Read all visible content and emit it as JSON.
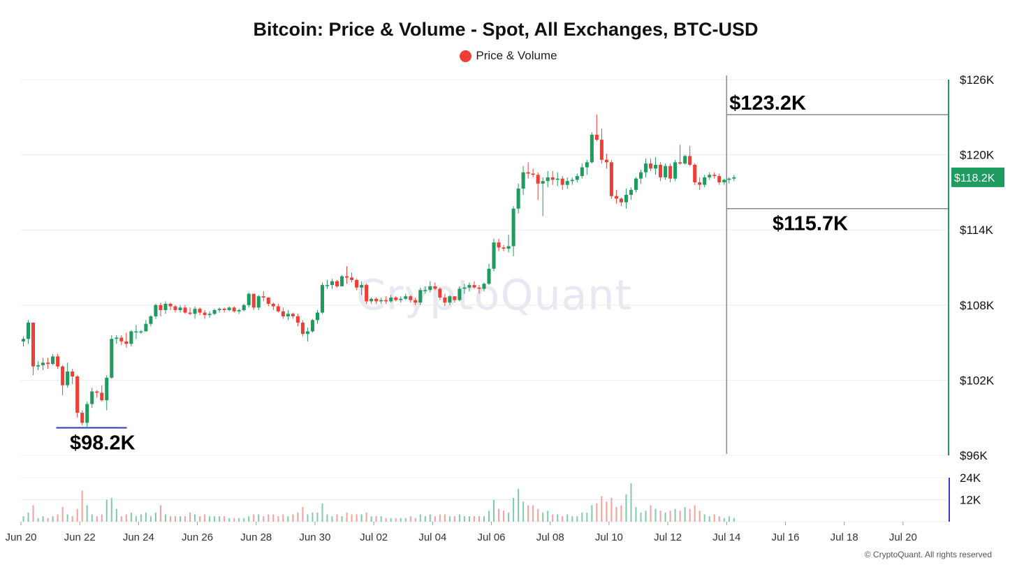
{
  "title": "Bitcoin: Price & Volume - Spot, All Exchanges, BTC-USD",
  "legend": {
    "label": "Price & Volume",
    "color": "#ef3e36"
  },
  "watermark": "CryptoQuant",
  "copyright": "© CryptoQuant. All rights reserved",
  "colors": {
    "up": "#1e9b5f",
    "down": "#ef3e36",
    "vol_up": "#7fcbab",
    "vol_down": "#f4a19b",
    "grid": "#ececec",
    "range_line": "#888888",
    "low_line": "#2b3bb0",
    "current_badge": "#1e9b5f",
    "volume_axis": "#3a36c7"
  },
  "chart_data": {
    "type": "candlestick",
    "price_axis": {
      "ticks": [
        "$96K",
        "$102K",
        "$108K",
        "$114K",
        "$120K",
        "$126K"
      ],
      "tick_values": [
        96,
        102,
        108,
        114,
        120,
        126
      ],
      "ylim": [
        96,
        126
      ],
      "unit": "thousand USD"
    },
    "volume_axis": {
      "ticks": [
        "12K",
        "24K"
      ],
      "tick_values": [
        12,
        24
      ],
      "ylim": [
        0,
        24
      ]
    },
    "x_axis": {
      "ticks": [
        "Jun 20",
        "Jun 22",
        "Jun 24",
        "Jun 26",
        "Jun 28",
        "Jun 30",
        "Jul 02",
        "Jul 04",
        "Jul 06",
        "Jul 08",
        "Jul 10",
        "Jul 12",
        "Jul 14",
        "Jul 16",
        "Jul 18",
        "Jul 20"
      ],
      "tick_days": [
        0,
        2,
        4,
        6,
        8,
        10,
        12,
        14,
        16,
        18,
        20,
        22,
        24,
        26,
        28,
        30
      ]
    },
    "current_price_label": "$118.2K",
    "current_price": 118.2,
    "annotations": [
      {
        "label": "$123.2K",
        "value": 123.2
      },
      {
        "label": "$115.7K",
        "value": 115.7
      },
      {
        "label": "$98.2K",
        "value": 98.2
      }
    ],
    "range_box": {
      "start_day": 24.0,
      "high": 123.2,
      "low": 115.7
    },
    "low_marker": {
      "start_day": 1.2,
      "end_day": 3.6,
      "value": 98.2
    },
    "interval": "4h",
    "candles": [
      [
        105.1,
        105.5,
        104.7,
        105.3,
        3
      ],
      [
        105.3,
        106.8,
        104.9,
        106.6,
        5
      ],
      [
        106.6,
        106.6,
        102.4,
        103.1,
        9
      ],
      [
        103.1,
        103.5,
        102.8,
        103.2,
        2
      ],
      [
        103.2,
        103.8,
        102.8,
        103.4,
        3
      ],
      [
        103.4,
        103.8,
        102.9,
        103.3,
        2
      ],
      [
        103.3,
        104.1,
        103.2,
        103.9,
        3
      ],
      [
        103.9,
        104.1,
        102.9,
        103.1,
        4
      ],
      [
        103.1,
        103.2,
        100.8,
        101.6,
        8
      ],
      [
        101.6,
        103.4,
        101.4,
        102.7,
        4
      ],
      [
        102.7,
        102.9,
        101.7,
        102.3,
        3
      ],
      [
        102.3,
        102.4,
        99.0,
        99.4,
        7
      ],
      [
        99.4,
        99.6,
        98.4,
        98.6,
        17
      ],
      [
        98.6,
        100.3,
        98.2,
        100.1,
        9
      ],
      [
        100.1,
        101.4,
        99.8,
        101.1,
        4
      ],
      [
        101.1,
        101.2,
        100.6,
        101.0,
        3
      ],
      [
        101.0,
        101.6,
        100.3,
        100.4,
        4
      ],
      [
        100.4,
        102.4,
        99.6,
        102.2,
        12
      ],
      [
        102.2,
        105.6,
        102.1,
        105.3,
        13
      ],
      [
        105.3,
        105.6,
        104.9,
        105.4,
        7
      ],
      [
        105.4,
        105.6,
        104.8,
        105.1,
        3
      ],
      [
        105.1,
        105.8,
        104.6,
        104.9,
        4
      ],
      [
        104.9,
        106.0,
        104.7,
        105.9,
        5
      ],
      [
        105.9,
        106.4,
        105.3,
        105.9,
        3
      ],
      [
        105.9,
        106.0,
        105.7,
        105.9,
        4
      ],
      [
        105.9,
        106.8,
        105.9,
        106.5,
        5
      ],
      [
        106.5,
        107.2,
        106.3,
        107.1,
        3
      ],
      [
        107.1,
        108.1,
        106.9,
        108.0,
        5
      ],
      [
        108.0,
        108.2,
        107.1,
        107.6,
        9
      ],
      [
        107.6,
        108.3,
        107.3,
        108.1,
        4
      ],
      [
        108.1,
        108.2,
        107.6,
        107.9,
        3
      ],
      [
        107.9,
        108.0,
        107.4,
        107.6,
        3
      ],
      [
        107.6,
        108.0,
        107.4,
        107.8,
        3
      ],
      [
        107.8,
        108.0,
        107.3,
        107.4,
        3
      ],
      [
        107.4,
        107.8,
        107.2,
        107.3,
        5
      ],
      [
        107.3,
        107.9,
        106.9,
        107.7,
        4
      ],
      [
        107.7,
        107.8,
        107.2,
        107.4,
        3
      ],
      [
        107.4,
        107.6,
        106.9,
        107.2,
        4
      ],
      [
        107.2,
        107.5,
        107.0,
        107.3,
        3
      ],
      [
        107.3,
        107.7,
        107.2,
        107.6,
        3
      ],
      [
        107.6,
        107.8,
        107.4,
        107.7,
        3
      ],
      [
        107.7,
        107.8,
        107.4,
        107.6,
        3
      ],
      [
        107.6,
        107.9,
        107.5,
        107.8,
        2
      ],
      [
        107.8,
        107.9,
        107.4,
        107.5,
        2
      ],
      [
        107.5,
        107.7,
        107.3,
        107.6,
        2
      ],
      [
        107.6,
        108.1,
        107.5,
        108.0,
        2
      ],
      [
        108.0,
        109.0,
        107.8,
        108.9,
        3
      ],
      [
        108.9,
        108.9,
        107.6,
        107.8,
        4
      ],
      [
        107.8,
        108.8,
        107.6,
        108.7,
        4
      ],
      [
        108.7,
        109.1,
        108.3,
        108.6,
        3
      ],
      [
        108.6,
        108.6,
        107.9,
        108.1,
        4
      ],
      [
        108.1,
        108.2,
        107.6,
        107.9,
        4
      ],
      [
        107.9,
        108.1,
        107.4,
        107.5,
        3
      ],
      [
        107.5,
        107.8,
        106.9,
        107.1,
        4
      ],
      [
        107.1,
        107.6,
        106.8,
        107.3,
        3
      ],
      [
        107.3,
        107.4,
        106.9,
        107.1,
        4
      ],
      [
        107.1,
        107.3,
        106.3,
        106.6,
        5
      ],
      [
        106.6,
        106.8,
        105.5,
        105.7,
        8
      ],
      [
        105.7,
        106.2,
        105.1,
        105.9,
        4
      ],
      [
        105.9,
        106.9,
        105.8,
        106.8,
        5
      ],
      [
        106.8,
        107.6,
        106.5,
        107.4,
        5
      ],
      [
        107.4,
        109.8,
        107.3,
        109.6,
        10
      ],
      [
        109.6,
        110.0,
        109.3,
        109.6,
        4
      ],
      [
        109.6,
        110.1,
        109.3,
        109.9,
        3
      ],
      [
        109.9,
        110.0,
        109.4,
        109.5,
        4
      ],
      [
        109.5,
        110.4,
        109.5,
        110.3,
        3
      ],
      [
        110.3,
        111.1,
        109.7,
        110.2,
        5
      ],
      [
        110.2,
        110.6,
        109.8,
        110.0,
        4
      ],
      [
        110.0,
        110.1,
        109.2,
        109.4,
        4
      ],
      [
        109.4,
        109.9,
        108.8,
        109.6,
        4
      ],
      [
        109.6,
        109.7,
        108.1,
        108.3,
        5
      ],
      [
        108.3,
        108.6,
        108.1,
        108.5,
        3
      ],
      [
        108.5,
        108.6,
        108.1,
        108.3,
        3
      ],
      [
        108.3,
        108.6,
        108.1,
        108.4,
        3
      ],
      [
        108.4,
        108.7,
        108.1,
        108.3,
        2
      ],
      [
        108.3,
        108.8,
        108.2,
        108.6,
        2
      ],
      [
        108.6,
        108.7,
        108.3,
        108.4,
        2
      ],
      [
        108.4,
        108.7,
        108.2,
        108.5,
        2
      ],
      [
        108.5,
        108.9,
        108.4,
        108.7,
        2
      ],
      [
        108.7,
        108.8,
        108.2,
        108.4,
        3
      ],
      [
        108.4,
        108.6,
        108.0,
        108.2,
        2
      ],
      [
        108.2,
        109.4,
        108.0,
        109.2,
        4
      ],
      [
        109.2,
        109.5,
        108.9,
        109.2,
        3
      ],
      [
        109.2,
        109.9,
        109.0,
        109.5,
        4
      ],
      [
        109.5,
        109.8,
        109.2,
        109.3,
        3
      ],
      [
        109.3,
        109.4,
        108.4,
        108.6,
        4
      ],
      [
        108.6,
        108.9,
        107.9,
        108.2,
        4
      ],
      [
        108.2,
        108.8,
        108.0,
        108.7,
        3
      ],
      [
        108.7,
        108.7,
        108.2,
        108.4,
        3
      ],
      [
        108.4,
        109.5,
        108.3,
        109.3,
        4
      ],
      [
        109.3,
        109.7,
        108.9,
        109.4,
        3
      ],
      [
        109.4,
        109.8,
        109.1,
        109.6,
        3
      ],
      [
        109.6,
        109.9,
        109.3,
        109.4,
        3
      ],
      [
        109.4,
        109.6,
        108.9,
        109.3,
        3
      ],
      [
        109.3,
        109.8,
        109.1,
        109.7,
        3
      ],
      [
        109.7,
        111.3,
        109.6,
        110.9,
        6
      ],
      [
        110.9,
        113.3,
        110.7,
        113.0,
        12
      ],
      [
        113.0,
        113.3,
        112.3,
        112.6,
        7
      ],
      [
        112.6,
        112.8,
        112.3,
        112.5,
        6
      ],
      [
        112.5,
        113.6,
        112.2,
        112.7,
        5
      ],
      [
        112.7,
        115.9,
        111.9,
        115.7,
        13
      ],
      [
        115.7,
        117.7,
        115.3,
        117.3,
        18
      ],
      [
        117.3,
        119.1,
        116.8,
        118.6,
        11
      ],
      [
        118.6,
        119.4,
        118.1,
        118.5,
        9
      ],
      [
        118.5,
        118.9,
        118.2,
        118.4,
        9
      ],
      [
        118.4,
        118.6,
        116.4,
        117.7,
        7
      ],
      [
        117.7,
        118.2,
        115.1,
        117.9,
        5
      ],
      [
        117.9,
        118.7,
        117.4,
        118.2,
        6
      ],
      [
        118.2,
        118.7,
        117.6,
        118.0,
        4
      ],
      [
        118.0,
        118.6,
        117.5,
        118.1,
        4
      ],
      [
        118.1,
        118.3,
        117.2,
        117.6,
        3
      ],
      [
        117.6,
        118.2,
        117.3,
        117.9,
        4
      ],
      [
        117.9,
        118.2,
        117.6,
        118.0,
        3
      ],
      [
        118.0,
        118.5,
        117.8,
        118.3,
        3
      ],
      [
        118.3,
        119.3,
        118.1,
        119.0,
        5
      ],
      [
        119.0,
        119.6,
        118.4,
        119.4,
        5
      ],
      [
        119.4,
        121.8,
        119.3,
        121.6,
        9
      ],
      [
        121.6,
        123.2,
        121.1,
        121.2,
        10
      ],
      [
        121.2,
        122.1,
        119.3,
        119.6,
        14
      ],
      [
        119.6,
        120.1,
        118.9,
        119.4,
        11
      ],
      [
        119.4,
        119.6,
        116.5,
        116.7,
        13
      ],
      [
        116.7,
        117.2,
        116.1,
        116.5,
        8
      ],
      [
        116.5,
        116.6,
        115.9,
        116.2,
        9
      ],
      [
        116.2,
        117.3,
        115.7,
        116.8,
        15
      ],
      [
        116.8,
        117.4,
        116.4,
        117.2,
        21
      ],
      [
        117.2,
        118.2,
        117.0,
        118.1,
        8
      ],
      [
        118.1,
        118.8,
        117.7,
        118.6,
        5
      ],
      [
        118.6,
        119.7,
        118.2,
        119.3,
        6
      ],
      [
        119.3,
        119.7,
        118.7,
        118.9,
        9
      ],
      [
        118.9,
        119.8,
        118.4,
        119.2,
        7
      ],
      [
        119.2,
        119.4,
        117.9,
        118.2,
        6
      ],
      [
        118.2,
        119.3,
        118.0,
        119.1,
        5
      ],
      [
        119.1,
        119.3,
        117.8,
        118.1,
        6
      ],
      [
        118.1,
        119.6,
        117.9,
        119.4,
        7
      ],
      [
        119.4,
        120.8,
        119.2,
        119.3,
        6
      ],
      [
        119.3,
        120.0,
        119.2,
        119.9,
        8
      ],
      [
        119.9,
        120.7,
        119.1,
        119.2,
        7
      ],
      [
        119.2,
        119.3,
        117.6,
        117.8,
        9
      ],
      [
        117.8,
        118.2,
        117.2,
        117.6,
        6
      ],
      [
        117.6,
        118.4,
        117.4,
        118.2,
        4
      ],
      [
        118.2,
        118.6,
        118.0,
        118.4,
        3
      ],
      [
        118.4,
        118.6,
        118.1,
        118.3,
        4
      ],
      [
        118.3,
        118.5,
        117.6,
        117.8,
        3
      ],
      [
        117.8,
        118.1,
        117.6,
        118.0,
        2
      ],
      [
        118.0,
        118.2,
        117.7,
        118.1,
        3
      ],
      [
        118.1,
        118.4,
        117.9,
        118.2,
        2
      ]
    ]
  }
}
